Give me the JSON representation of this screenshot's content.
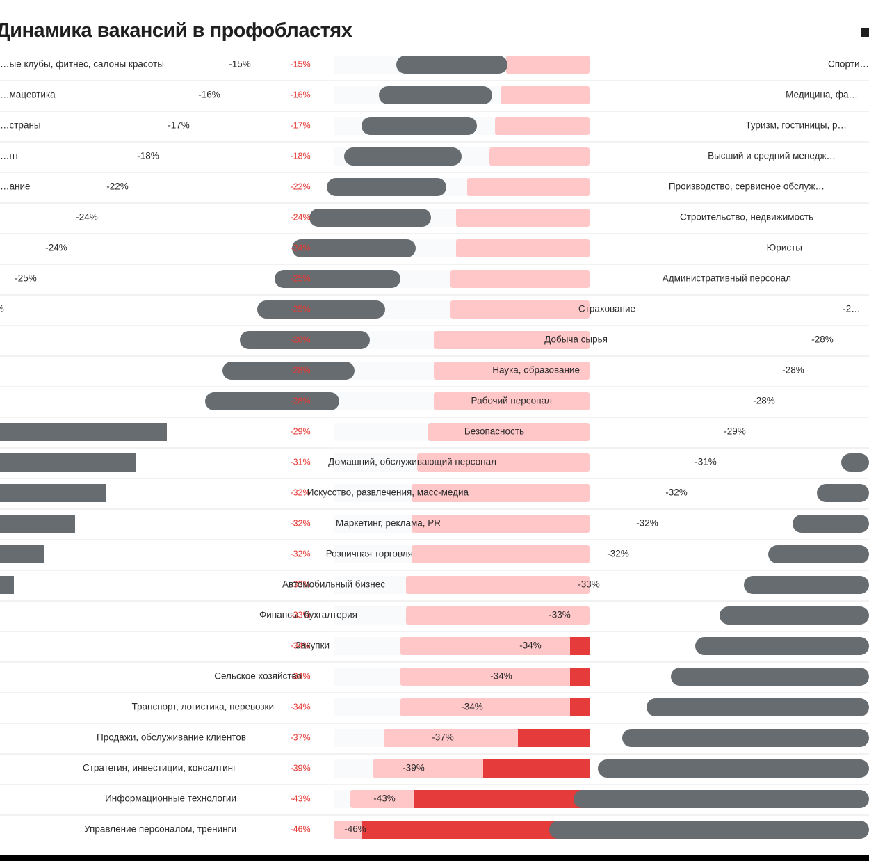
{
  "title": "Динамика вакансий в профобластях",
  "colors": {
    "bar_light": "#ffc7c8",
    "bar_red": "#e53b3b",
    "bar_gray": "#676c70",
    "bar_track": "#ececec",
    "bar_blue_track": "#e7edf3",
    "center_text": "#e53935",
    "divider": "#cfcfcf"
  },
  "chart_data": {
    "type": "bar",
    "orientation": "horizontal",
    "title": "Динамика вакансий в профобластях",
    "unit": "%",
    "xlim": [
      -50,
      0
    ],
    "categories": [
      "Спортивные клубы, фитнес, салоны красоты",
      "Медицина, фармацевтика",
      "Туризм, гостиницы, рестораны",
      "Высший и средний менеджмент",
      "Производство, сервисное обслуживание",
      "Строительство, недвижимость",
      "Юристы",
      "Административный персонал",
      "Страхование",
      "Добыча сырья",
      "Наука, образование",
      "Рабочий персонал",
      "Безопасность",
      "Домашний, обслуживающий персонал",
      "Искусство, развлечения, масс-медиа",
      "Маркетинг, реклама, PR",
      "Розничная торговля",
      "Автомобильный бизнес",
      "Финансы, бухгалтерия",
      "Закупки",
      "Сельское хозяйство",
      "Транспорт, логистика, перевозки",
      "Продажи, обслуживание клиентов",
      "Стратегия, инвестиции, консалтинг",
      "Информационные технологии",
      "Управление персоналом, тренинги"
    ],
    "values": [
      -15,
      -16,
      -17,
      -18,
      -22,
      -24,
      -24,
      -25,
      -25,
      -28,
      -28,
      -28,
      -29,
      -31,
      -32,
      -32,
      -32,
      -33,
      -33,
      -34,
      -34,
      -34,
      -37,
      -39,
      -43,
      -46
    ],
    "value_labels": [
      "-15%",
      "-16%",
      "-17%",
      "-18%",
      "-22%",
      "-24%",
      "-24%",
      "-25%",
      "-25%",
      "-28%",
      "-28%",
      "-28%",
      "-29%",
      "-31%",
      "-32%",
      "-32%",
      "-32%",
      "-33%",
      "-33%",
      "-34%",
      "-34%",
      "-34%",
      "-37%",
      "-39%",
      "-43%",
      "-46%"
    ],
    "visible_category_labels": [
      "…ые клубы, фитнес, салоны красоты",
      "…мацевтика",
      "…страны",
      "…нт",
      "…ание",
      "",
      "",
      "",
      "",
      "",
      "",
      "",
      "",
      "",
      "",
      "",
      "",
      "",
      "",
      "",
      "",
      "",
      "",
      "",
      "",
      ""
    ],
    "right_side_labels": [
      "Спорти…",
      "Медицина, фа…",
      "Туризм, гостиницы, р…",
      "Высший и средний менедж…",
      "Производство, сервисное обслуж…",
      "Строительство, недвижимость",
      "Юристы",
      "Административный персонал",
      "Страхование",
      "Добыча сырья",
      "Наука, образование",
      "Рабочий персонал",
      "Безопасность",
      "Домашний, обслуживающий персонал",
      "Искусство, развлечения, масс-медиа",
      "Маркетинг, реклама, PR",
      "Розничная торговля",
      "Автомобильный бизнес",
      "Финансы, бухгалтерия",
      "Закупки",
      "Сельское хозяйство",
      "Транспорт, логистика, перевозки",
      "Продажи, обслуживание клиентов",
      "Стратегия, инвестиции, консалтинг",
      "Информационные технологии",
      "Управление персоналом, тренинги"
    ],
    "right_value_labels": [
      "",
      "",
      "",
      "",
      "",
      "",
      "",
      "",
      "-2…",
      "-28%",
      "-28%",
      "-28%",
      "-29%",
      "-31%",
      "-32%",
      "-32%",
      "-32%",
      "-33%",
      "-33%",
      "-34%",
      "-34%",
      "-34%",
      "-37%",
      "-39%",
      "-43%",
      "-46%"
    ],
    "left_value_labels": [
      "-15%",
      "-16%",
      "-17%",
      "-18%",
      "-22%",
      "-24%",
      "-24%",
      "-25%",
      "…%",
      "",
      "",
      "",
      "",
      "",
      "",
      "",
      "",
      "",
      "",
      "",
      "",
      "",
      "",
      "",
      "",
      ""
    ]
  }
}
